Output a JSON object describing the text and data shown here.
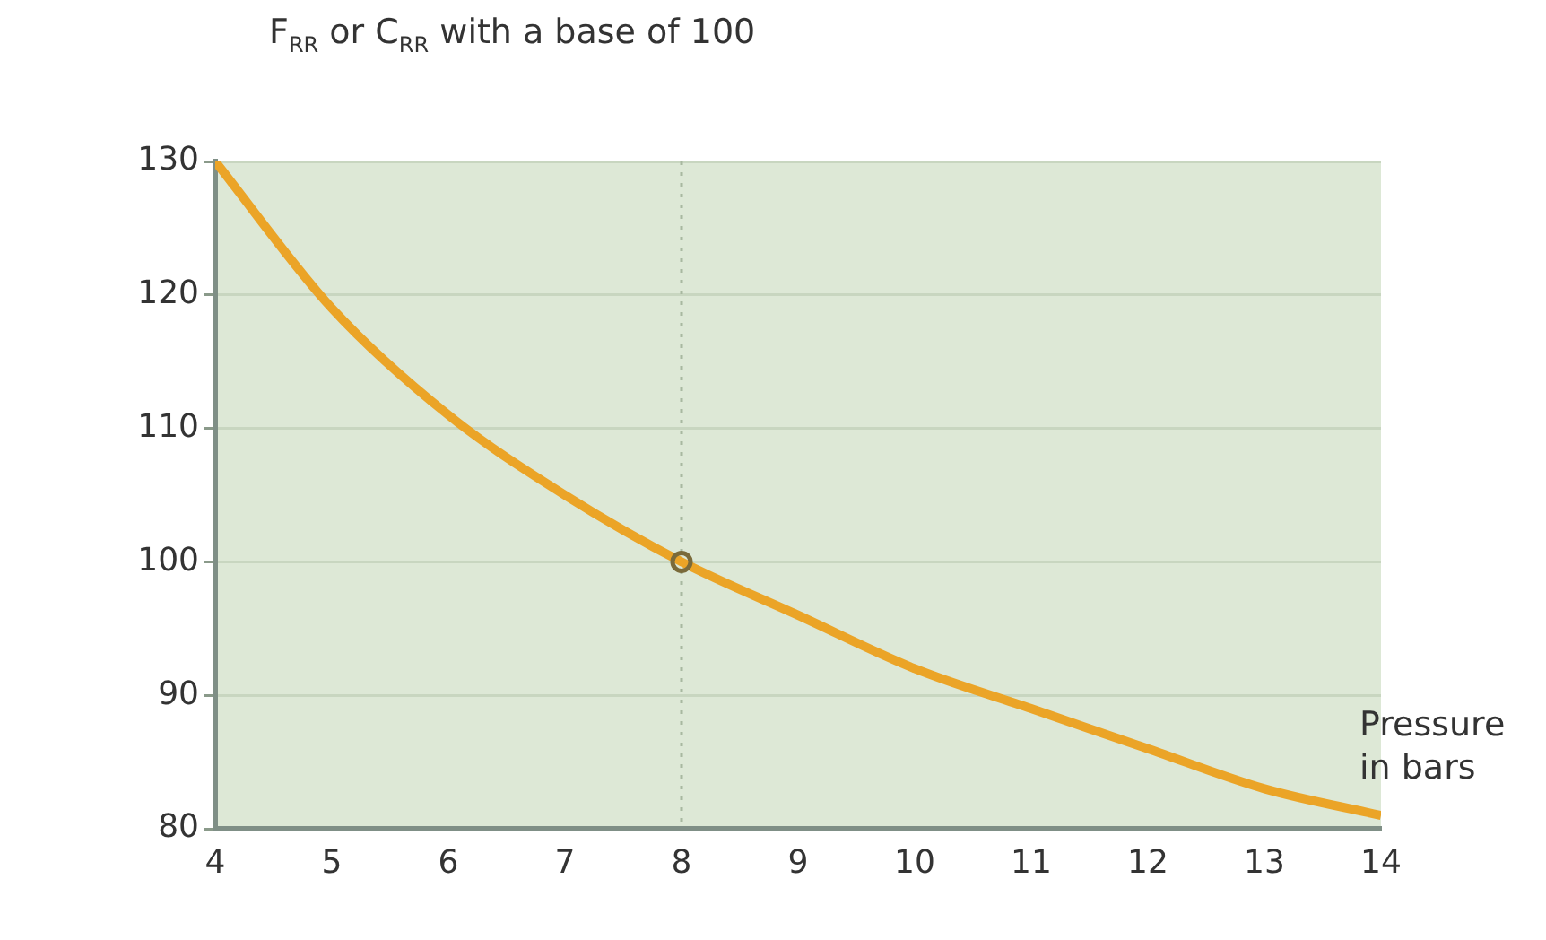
{
  "chart_data": {
    "type": "line",
    "ylabel": "F$_{RR}$ or C$_{RR}$ with a base of 100",
    "xlabel": "Pressure in bars",
    "x": [
      4,
      5,
      6,
      7,
      8,
      9,
      10,
      11,
      12,
      13,
      14
    ],
    "series": [
      {
        "color": "#eba427",
        "values": [
          130,
          119,
          111,
          105,
          100,
          96,
          92,
          89,
          86,
          83,
          81
        ]
      },
      {
        "type": "scatter",
        "color": "#7a6a3a",
        "x": [
          8
        ],
        "values": [
          100
        ],
        "marker": "circle"
      }
    ],
    "xlim": [
      4,
      14
    ],
    "xticks": [
      4,
      5,
      6,
      7,
      8,
      9,
      10,
      11,
      12,
      13,
      14
    ],
    "ylim": [
      80,
      130
    ],
    "yticks": [
      80,
      90,
      100,
      110,
      120,
      130
    ],
    "grid": "y",
    "legend": false,
    "marker": "none",
    "ref_lines": [
      {
        "axis": "x",
        "value": 8,
        "line_style": "dotted",
        "color": "#a8b8a0"
      }
    ]
  }
}
